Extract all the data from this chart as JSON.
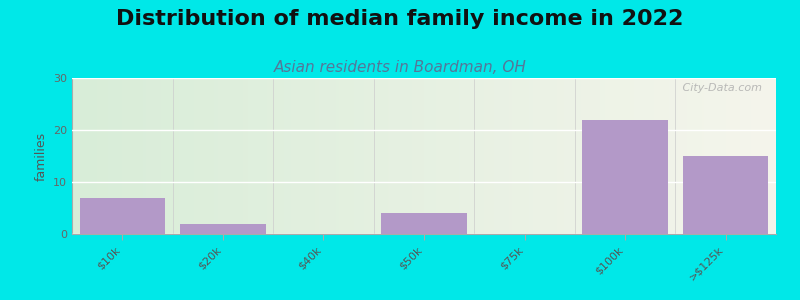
{
  "title": "Distribution of median family income in 2022",
  "subtitle": "Asian residents in Boardman, OH",
  "categories": [
    "$10k",
    "$20k",
    "$40k",
    "$50k",
    "$75k",
    "$100k",
    ">$125k"
  ],
  "values": [
    7,
    2,
    0,
    4,
    0,
    22,
    15
  ],
  "bar_color": "#b399c8",
  "ylim": [
    0,
    30
  ],
  "yticks": [
    0,
    10,
    20,
    30
  ],
  "ylabel": "families",
  "background_color": "#00e8e8",
  "grad_left": "#d8edd8",
  "grad_right": "#f0f0e8",
  "watermark": " City-Data.com",
  "title_fontsize": 16,
  "subtitle_fontsize": 11,
  "tick_fontsize": 8,
  "ylabel_fontsize": 9
}
